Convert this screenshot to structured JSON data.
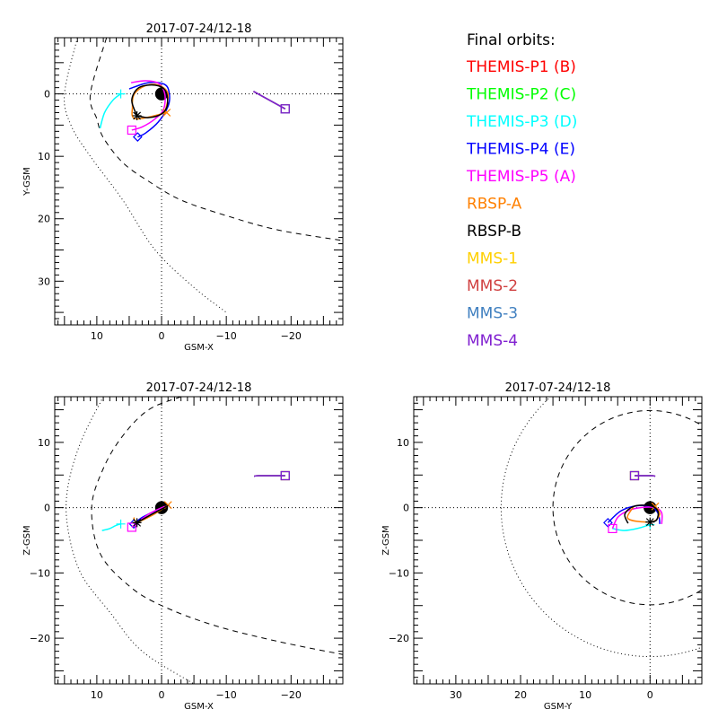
{
  "legend": {
    "title": "Final orbits:",
    "entries": [
      {
        "label": "THEMIS-P1 (B)",
        "color": "#ff0000"
      },
      {
        "label": "THEMIS-P2 (C)",
        "color": "#00ff00"
      },
      {
        "label": "THEMIS-P3 (D)",
        "color": "#00ffff"
      },
      {
        "label": "THEMIS-P4 (E)",
        "color": "#0000ff"
      },
      {
        "label": "THEMIS-P5 (A)",
        "color": "#ff00ff"
      },
      {
        "label": "RBSP-A",
        "color": "#ff8000"
      },
      {
        "label": "RBSP-B",
        "color": "#000000"
      },
      {
        "label": "MMS-1",
        "color": "#ffd000"
      },
      {
        "label": "MMS-2",
        "color": "#d04040"
      },
      {
        "label": "MMS-3",
        "color": "#4080c0"
      },
      {
        "label": "MMS-4",
        "color": "#8020d0"
      }
    ]
  },
  "chart_data": [
    {
      "type": "line",
      "panel": "X-Y plane",
      "title": "2017-07-24/12-18",
      "xlabel": "GSM-X",
      "ylabel": "Y-GSM",
      "xlim": [
        16.5,
        -28
      ],
      "ylim": [
        -9,
        37
      ],
      "y_inverted": true,
      "xticks": [
        10,
        0,
        -10,
        -20
      ],
      "xtick_labels": [
        "10",
        "0",
        "-10",
        "-20"
      ],
      "yticks": [
        0,
        10,
        20,
        30
      ],
      "ytick_labels": [
        "0",
        "10",
        "20",
        "30"
      ],
      "reference_lines": {
        "x0": true,
        "y0": true
      },
      "boundaries": {
        "bow_shock": {
          "style": "dotted",
          "points": [
            [
              13,
              -9
            ],
            [
              15,
              0
            ],
            [
              14,
              5
            ],
            [
              11,
              10
            ],
            [
              6,
              17
            ],
            [
              1,
              25
            ],
            [
              -5,
              31
            ],
            [
              -10,
              35
            ]
          ]
        },
        "magnetopause": {
          "style": "dashed",
          "points": [
            [
              8.5,
              -9
            ],
            [
              11,
              0
            ],
            [
              10,
              4
            ],
            [
              9,
              7
            ],
            [
              6,
              11
            ],
            [
              2,
              14
            ],
            [
              -3,
              17
            ],
            [
              -10,
              19.5
            ],
            [
              -18,
              21.8
            ],
            [
              -28,
              23.5
            ]
          ]
        }
      },
      "series": [
        {
          "name": "THEMIS-P3 (D)",
          "color": "#00ffff",
          "marker": "+",
          "points": [
            [
              9.5,
              5.5
            ],
            [
              8.8,
              3
            ],
            [
              7.5,
              1
            ],
            [
              6.3,
              0
            ]
          ]
        },
        {
          "name": "THEMIS-P4 (E)",
          "color": "#0000ff",
          "marker": "diamond",
          "points": [
            [
              5,
              -0.8
            ],
            [
              2,
              -1.8
            ],
            [
              -0.5,
              -1.5
            ],
            [
              -1.2,
              0
            ],
            [
              -1,
              2
            ],
            [
              0.5,
              4.5
            ],
            [
              2.5,
              6.3
            ],
            [
              3.7,
              6.9
            ]
          ]
        },
        {
          "name": "THEMIS-P5 (A)",
          "color": "#ff00ff",
          "marker": "square",
          "points": [
            [
              4.7,
              -1.8
            ],
            [
              2.5,
              -2.1
            ],
            [
              0.5,
              -1.7
            ],
            [
              -0.5,
              0
            ],
            [
              -0.3,
              2.5
            ],
            [
              1,
              4
            ],
            [
              3,
              5.3
            ],
            [
              4.6,
              5.8
            ]
          ]
        },
        {
          "name": "RBSP-A",
          "color": "#ff8000",
          "marker": "x",
          "points": [
            [
              -0.5,
              3
            ],
            [
              -1,
              0
            ],
            [
              0.5,
              -1.4
            ],
            [
              2.5,
              -1.3
            ],
            [
              4.2,
              0
            ],
            [
              4.5,
              2
            ],
            [
              4,
              4
            ],
            [
              -0.8,
              3
            ]
          ]
        },
        {
          "name": "RBSP-B",
          "color": "#000000",
          "marker": "asterisk",
          "points": [
            [
              3.8,
              3.5
            ],
            [
              4.6,
              1
            ],
            [
              3.5,
              -1
            ],
            [
              1,
              -1.4
            ],
            [
              -0.6,
              -0.5
            ],
            [
              -0.9,
              1.8
            ],
            [
              0,
              3.2
            ],
            [
              2,
              3.8
            ],
            [
              3.8,
              3.5
            ]
          ]
        },
        {
          "name": "MMS-1",
          "color": "#ffd000",
          "marker": "square",
          "points": [
            [
              -14.2,
              -0.4
            ],
            [
              -19.1,
              2.4
            ]
          ]
        },
        {
          "name": "MMS-2",
          "color": "#d04040",
          "marker": "square",
          "points": [
            [
              -14.2,
              -0.4
            ],
            [
              -19.1,
              2.4
            ]
          ]
        },
        {
          "name": "MMS-3",
          "color": "#4080c0",
          "marker": "square",
          "points": [
            [
              -14.2,
              -0.4
            ],
            [
              -19.1,
              2.4
            ]
          ]
        },
        {
          "name": "MMS-4",
          "color": "#8020d0",
          "marker": "square",
          "points": [
            [
              -14.2,
              -0.4
            ],
            [
              -19.1,
              2.4
            ]
          ]
        }
      ],
      "earth": {
        "x": 0,
        "y": 0,
        "radius": 1
      }
    },
    {
      "type": "line",
      "panel": "X-Z plane",
      "title": "2017-07-24/12-18",
      "xlabel": "GSM-X",
      "ylabel": "Z-GSM",
      "xlim": [
        16.5,
        -28
      ],
      "ylim": [
        -27,
        17
      ],
      "y_inverted": false,
      "xticks": [
        10,
        0,
        -10,
        -20
      ],
      "xtick_labels": [
        "10",
        "0",
        "-10",
        "-20"
      ],
      "yticks": [
        10,
        0,
        -10,
        -20
      ],
      "ytick_labels": [
        "10",
        "0",
        "-10",
        "-20"
      ],
      "reference_lines": {
        "x0": true,
        "y0": true
      },
      "boundaries": {
        "bow_shock": {
          "style": "dotted",
          "points": [
            [
              9,
              17
            ],
            [
              12.5,
              10
            ],
            [
              14.5,
              3
            ],
            [
              14.5,
              -3
            ],
            [
              12.5,
              -10
            ],
            [
              8,
              -16
            ],
            [
              3,
              -22
            ],
            [
              -5,
              -27
            ]
          ]
        },
        "magnetopause": {
          "style": "dashed",
          "points": [
            [
              -3,
              17
            ],
            [
              2,
              15
            ],
            [
              6,
              11
            ],
            [
              9,
              6
            ],
            [
              10.8,
              0
            ],
            [
              9.5,
              -7
            ],
            [
              5,
              -12
            ],
            [
              0,
              -15
            ],
            [
              -8,
              -18
            ],
            [
              -18,
              -20.5
            ],
            [
              -28,
              -22.5
            ]
          ]
        }
      },
      "series": [
        {
          "name": "THEMIS-P3 (D)",
          "color": "#00ffff",
          "marker": "+",
          "points": [
            [
              9.2,
              -3.5
            ],
            [
              8,
              -3.2
            ],
            [
              7,
              -2.7
            ],
            [
              6.3,
              -2.5
            ]
          ]
        },
        {
          "name": "THEMIS-P4 (E)",
          "color": "#0000ff",
          "marker": "diamond",
          "points": [
            [
              -1.2,
              0.4
            ],
            [
              1,
              -0.5
            ],
            [
              3,
              -1.5
            ],
            [
              4.3,
              -2.5
            ]
          ]
        },
        {
          "name": "THEMIS-P5 (A)",
          "color": "#ff00ff",
          "marker": "square",
          "points": [
            [
              -0.5,
              0.2
            ],
            [
              2,
              -1
            ],
            [
              4.6,
              -3
            ]
          ]
        },
        {
          "name": "RBSP-A",
          "color": "#ff8000",
          "marker": "x",
          "points": [
            [
              4.3,
              -1.5
            ],
            [
              3.8,
              -2.2
            ],
            [
              1.5,
              -1.2
            ],
            [
              -1,
              0.4
            ]
          ]
        },
        {
          "name": "RBSP-B",
          "color": "#000000",
          "marker": "asterisk",
          "points": [
            [
              -1,
              0.3
            ],
            [
              1.5,
              -1
            ],
            [
              3.8,
              -2.3
            ]
          ]
        },
        {
          "name": "MMS-1",
          "color": "#ffd000",
          "marker": "square",
          "points": [
            [
              -14.3,
              4.8
            ],
            [
              -15,
              4.9
            ],
            [
              -19.1,
              4.9
            ]
          ]
        },
        {
          "name": "MMS-2",
          "color": "#d04040",
          "marker": "square",
          "points": [
            [
              -14.3,
              4.8
            ],
            [
              -15,
              4.9
            ],
            [
              -19.1,
              4.9
            ]
          ]
        },
        {
          "name": "MMS-3",
          "color": "#4080c0",
          "marker": "square",
          "points": [
            [
              -14.3,
              4.8
            ],
            [
              -15,
              4.9
            ],
            [
              -19.1,
              4.9
            ]
          ]
        },
        {
          "name": "MMS-4",
          "color": "#8020d0",
          "marker": "square",
          "points": [
            [
              -14.3,
              4.8
            ],
            [
              -15,
              4.9
            ],
            [
              -19.1,
              4.9
            ]
          ]
        }
      ],
      "earth": {
        "x": 0,
        "y": 0,
        "radius": 1
      }
    },
    {
      "type": "line",
      "panel": "Y-Z plane",
      "title": "2017-07-24/12-18",
      "xlabel": "GSM-Y",
      "ylabel": "Z-GSM",
      "xlim": [
        36.5,
        -8
      ],
      "ylim": [
        -27,
        17
      ],
      "y_inverted": false,
      "xticks": [
        30,
        20,
        10,
        0
      ],
      "xtick_labels": [
        "30",
        "20",
        "10",
        "0"
      ],
      "yticks": [
        10,
        0,
        -10,
        -20
      ],
      "ytick_labels": [
        "10",
        "0",
        "-10",
        "-20"
      ],
      "reference_lines": {
        "x0": true,
        "y0": true
      },
      "boundaries": {
        "bow_shock": {
          "style": "dotted",
          "circle": {
            "cx": 0,
            "cy": 0,
            "r": 23
          }
        },
        "magnetopause": {
          "style": "dashed",
          "circle": {
            "cx": 0,
            "cy": 0,
            "r": 15
          }
        }
      },
      "series": [
        {
          "name": "THEMIS-P3 (D)",
          "color": "#00ffff",
          "marker": "+",
          "points": [
            [
              5.8,
              -3.2
            ],
            [
              4,
              -3.5
            ],
            [
              2,
              -3.2
            ],
            [
              0,
              -2.6
            ]
          ]
        },
        {
          "name": "THEMIS-P4 (E)",
          "color": "#0000ff",
          "marker": "diamond",
          "points": [
            [
              -1.5,
              -2.5
            ],
            [
              -1.3,
              -1
            ],
            [
              -0.3,
              0.1
            ],
            [
              2,
              0.3
            ],
            [
              4.5,
              -0.5
            ],
            [
              6.5,
              -2.3
            ]
          ]
        },
        {
          "name": "THEMIS-P5 (A)",
          "color": "#ff00ff",
          "marker": "square",
          "points": [
            [
              -1.8,
              -2.5
            ],
            [
              -1.8,
              -0.8
            ],
            [
              -0.8,
              0
            ],
            [
              1.5,
              0
            ],
            [
              3.5,
              -0.5
            ],
            [
              5,
              -1.5
            ],
            [
              5.8,
              -3.2
            ]
          ]
        },
        {
          "name": "RBSP-A",
          "color": "#ff8000",
          "marker": "x",
          "points": [
            [
              2.5,
              0.2
            ],
            [
              3.5,
              -1.5
            ],
            [
              2,
              -2.1
            ],
            [
              -0.5,
              -2.1
            ],
            [
              -1.5,
              -1
            ],
            [
              -0.8,
              0.2
            ]
          ]
        },
        {
          "name": "RBSP-B",
          "color": "#000000",
          "marker": "asterisk",
          "points": [
            [
              3.4,
              -2.4
            ],
            [
              3.9,
              -1
            ],
            [
              2.5,
              0.2
            ],
            [
              0,
              0.3
            ],
            [
              -1.2,
              -0.5
            ],
            [
              -1,
              -1.9
            ],
            [
              0,
              -2.2
            ]
          ]
        },
        {
          "name": "MMS-1",
          "color": "#ffd000",
          "marker": "square",
          "points": [
            [
              -0.8,
              4.8
            ],
            [
              -0.3,
              4.9
            ],
            [
              2.4,
              4.9
            ]
          ]
        },
        {
          "name": "MMS-2",
          "color": "#d04040",
          "marker": "square",
          "points": [
            [
              -0.8,
              4.8
            ],
            [
              -0.3,
              4.9
            ],
            [
              2.4,
              4.9
            ]
          ]
        },
        {
          "name": "MMS-3",
          "color": "#4080c0",
          "marker": "square",
          "points": [
            [
              -0.8,
              4.8
            ],
            [
              -0.3,
              4.9
            ],
            [
              2.4,
              4.9
            ]
          ]
        },
        {
          "name": "MMS-4",
          "color": "#8020d0",
          "marker": "square",
          "points": [
            [
              -0.8,
              4.8
            ],
            [
              -0.3,
              4.9
            ],
            [
              2.4,
              4.9
            ]
          ]
        }
      ],
      "earth": {
        "x": 0,
        "y": 0,
        "radius": 1
      }
    }
  ]
}
